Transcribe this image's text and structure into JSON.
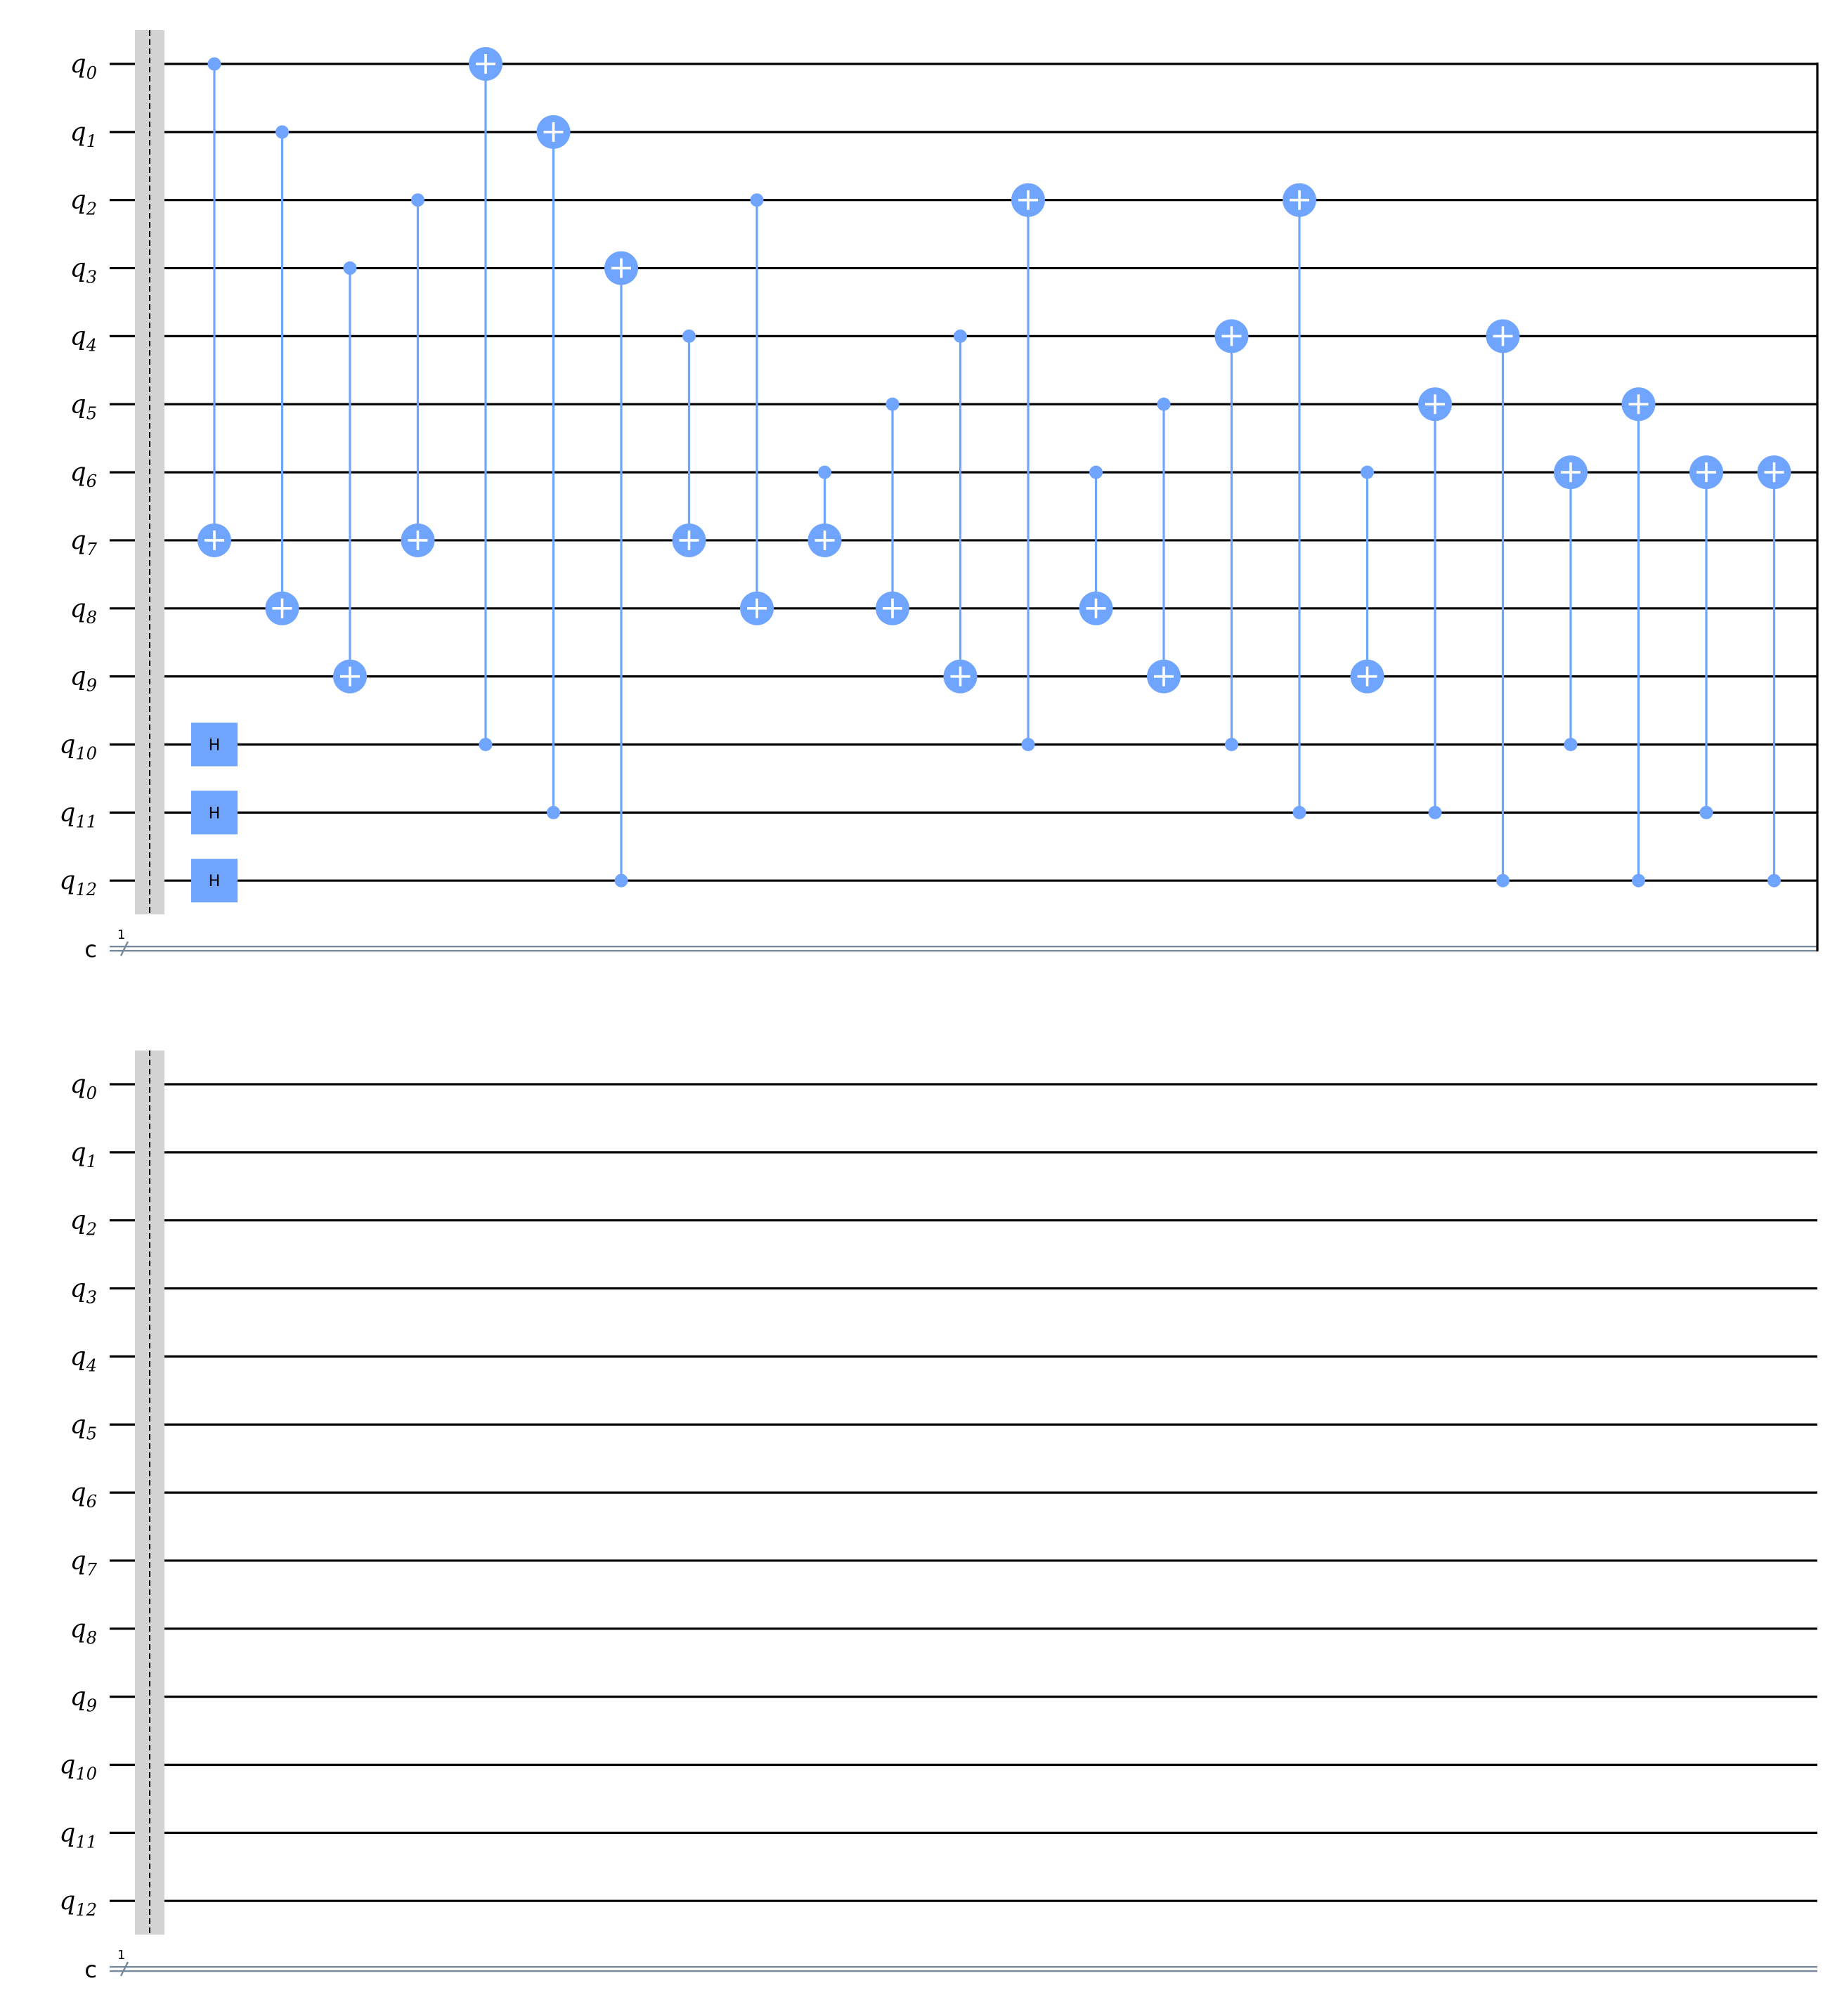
{
  "colors": {
    "gate": "#6fa4ff",
    "wire": "#000000",
    "classical_wire": "#778899",
    "barrier": "#d3d3d3"
  },
  "qubit_labels": [
    {
      "base": "q",
      "sub": "0"
    },
    {
      "base": "q",
      "sub": "1"
    },
    {
      "base": "q",
      "sub": "2"
    },
    {
      "base": "q",
      "sub": "3"
    },
    {
      "base": "q",
      "sub": "4"
    },
    {
      "base": "q",
      "sub": "5"
    },
    {
      "base": "q",
      "sub": "6"
    },
    {
      "base": "q",
      "sub": "7"
    },
    {
      "base": "q",
      "sub": "8"
    },
    {
      "base": "q",
      "sub": "9"
    },
    {
      "base": "q",
      "sub": "10"
    },
    {
      "base": "q",
      "sub": "11"
    },
    {
      "base": "q",
      "sub": "12"
    }
  ],
  "classical_register": {
    "label": "c",
    "size": "1"
  },
  "h_gate_label": "H",
  "panels": [
    {
      "name": "panel-1",
      "h_gates": [
        {
          "qubit": 10,
          "column": 1
        },
        {
          "qubit": 11,
          "column": 1
        },
        {
          "qubit": 12,
          "column": 1
        }
      ],
      "cx_gates": [
        {
          "control": 0,
          "target": 7,
          "column": 1
        },
        {
          "control": 1,
          "target": 8,
          "column": 2
        },
        {
          "control": 3,
          "target": 9,
          "column": 3
        },
        {
          "control": 2,
          "target": 7,
          "column": 4
        },
        {
          "control": 10,
          "target": 0,
          "column": 5
        },
        {
          "control": 11,
          "target": 1,
          "column": 6
        },
        {
          "control": 12,
          "target": 3,
          "column": 7
        },
        {
          "control": 4,
          "target": 7,
          "column": 8
        },
        {
          "control": 2,
          "target": 8,
          "column": 9
        },
        {
          "control": 6,
          "target": 7,
          "column": 10
        },
        {
          "control": 5,
          "target": 8,
          "column": 11
        },
        {
          "control": 4,
          "target": 9,
          "column": 12
        },
        {
          "control": 10,
          "target": 2,
          "column": 13
        },
        {
          "control": 6,
          "target": 8,
          "column": 14
        },
        {
          "control": 5,
          "target": 9,
          "column": 15
        },
        {
          "control": 10,
          "target": 4,
          "column": 16
        },
        {
          "control": 11,
          "target": 2,
          "column": 17
        },
        {
          "control": 6,
          "target": 9,
          "column": 18
        },
        {
          "control": 11,
          "target": 5,
          "column": 19
        },
        {
          "control": 12,
          "target": 4,
          "column": 20
        },
        {
          "control": 10,
          "target": 6,
          "column": 21
        },
        {
          "control": 12,
          "target": 5,
          "column": 22
        },
        {
          "control": 11,
          "target": 6,
          "column": 23
        },
        {
          "control": 12,
          "target": 6,
          "column": 24
        }
      ]
    },
    {
      "name": "panel-2",
      "h_gates": [],
      "cx_gates": []
    }
  ]
}
